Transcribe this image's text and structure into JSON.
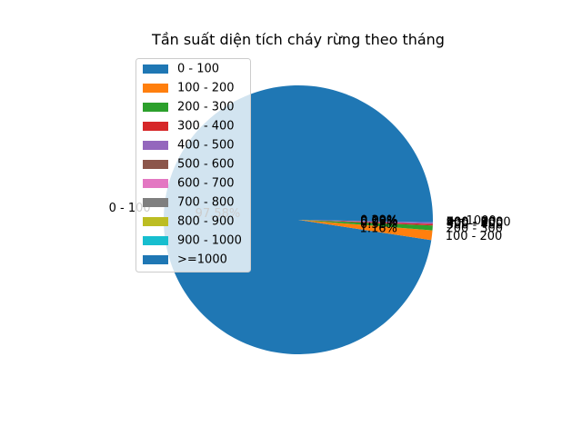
{
  "chart_data": {
    "type": "pie",
    "title": "Tần suất diện tích cháy rừng theo tháng",
    "start_angle_deg": 0,
    "direction": "counterclockwise",
    "legend_position": "upper-left",
    "categories": [
      "0 - 100",
      "100 - 200",
      "200 - 300",
      "300 - 400",
      "400 - 500",
      "500 - 600",
      "600 - 700",
      "700 - 800",
      "800 - 900",
      "900 - 1000",
      ">=1000"
    ],
    "values": [
      97.58,
      1.16,
      0.58,
      0.19,
      0.19,
      0.0,
      0.0,
      0.0,
      0.0,
      0.0,
      0.29
    ],
    "percent_labels": [
      "97.58%",
      "1.16%",
      "0.58%",
      "0.19%",
      "0.19%",
      "0.00%",
      "0.00%",
      "0.00%",
      "0.00%",
      "0.00%",
      "0.29%"
    ],
    "colors": [
      "#1f77b4",
      "#ff7f0e",
      "#2ca02c",
      "#d62728",
      "#9467bd",
      "#8c564b",
      "#e377c2",
      "#7f7f7f",
      "#bcbd22",
      "#17becf",
      "#1f77b4"
    ]
  }
}
